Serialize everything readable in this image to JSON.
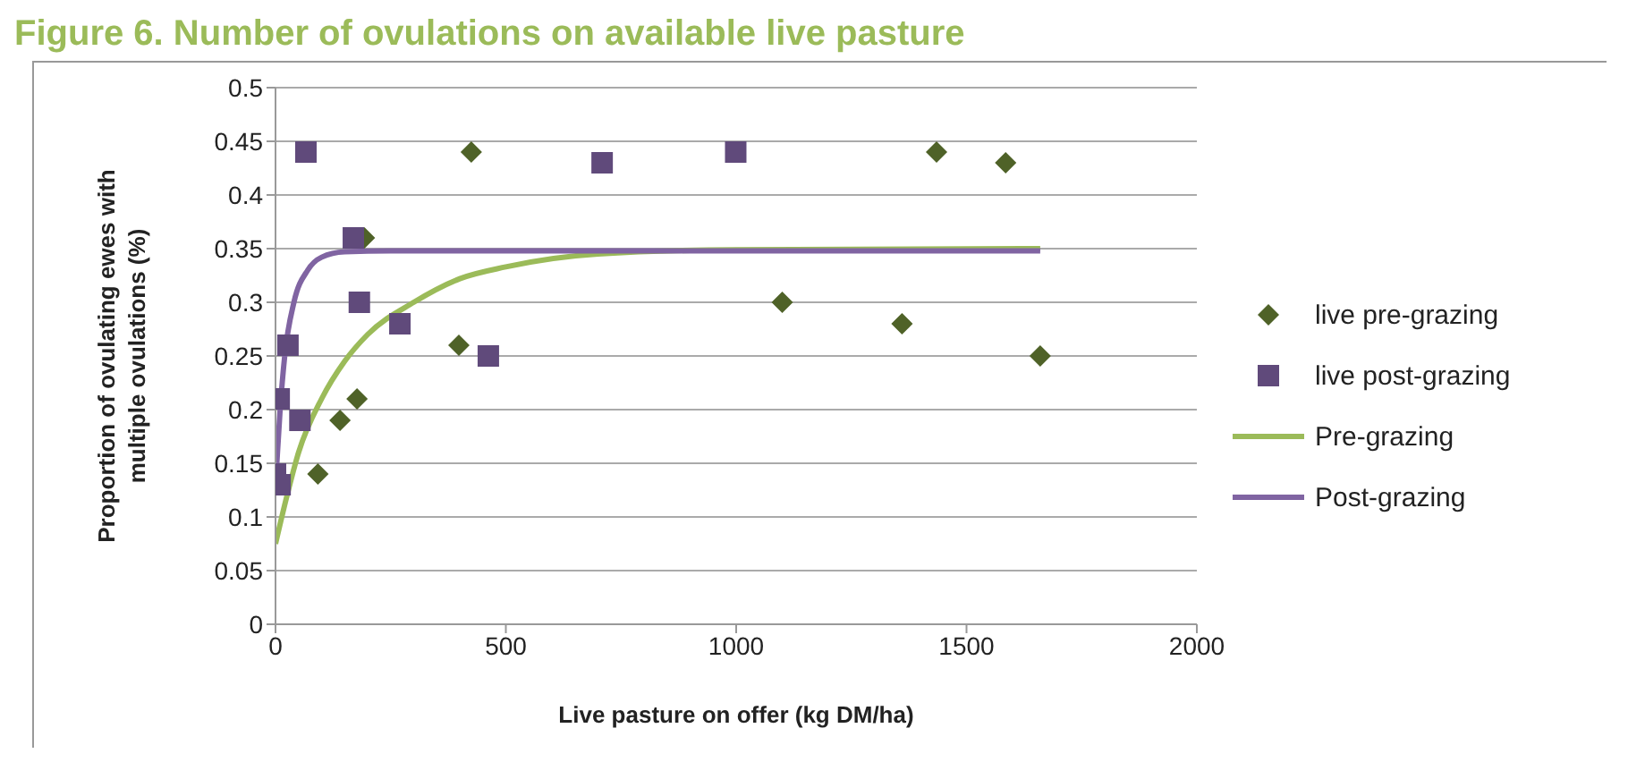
{
  "chart_data": {
    "type": "scatter",
    "title": "Figure 6. Number of ovulations on available live pasture",
    "xlabel": "Live pasture on offer (kg DM/ha)",
    "ylabel": "Proportion of ovulating ewes with multiple ovulations (%)",
    "xlim": [
      0,
      2000
    ],
    "xticks": [
      0,
      500,
      1000,
      1500,
      2000
    ],
    "ylim": [
      0,
      0.5
    ],
    "yticks": [
      0,
      0.05,
      0.1,
      0.15,
      0.2,
      0.25,
      0.3,
      0.35,
      0.4,
      0.45,
      0.5
    ],
    "grid": "y",
    "legend": "right",
    "series": [
      {
        "name": "live pre-grazing",
        "marker": "diamond",
        "color": "#4f6228",
        "x": [
          92,
          140,
          177,
          193,
          398,
          425,
          1100,
          1360,
          1435,
          1585,
          1660
        ],
        "values": [
          0.14,
          0.19,
          0.21,
          0.36,
          0.26,
          0.44,
          0.3,
          0.28,
          0.44,
          0.43,
          0.25
        ]
      },
      {
        "name": "live post-grazing",
        "marker": "square",
        "color": "#604a7b",
        "x": [
          0,
          10,
          8,
          27,
          53,
          66,
          169,
          182,
          270,
          462,
          709,
          999
        ],
        "values": [
          0.14,
          0.13,
          0.21,
          0.26,
          0.19,
          0.44,
          0.36,
          0.3,
          0.28,
          0.25,
          0.43,
          0.44
        ]
      },
      {
        "name": "Pre-grazing",
        "type": "line",
        "marker": "none",
        "line_style": "solid",
        "color": "#9bbb59",
        "x": [
          0,
          25,
          50,
          100,
          150,
          200,
          300,
          400,
          500,
          700,
          1000,
          1660
        ],
        "values": [
          0.075,
          0.12,
          0.16,
          0.21,
          0.245,
          0.27,
          0.3,
          0.322,
          0.333,
          0.345,
          0.349,
          0.35
        ]
      },
      {
        "name": "Post-grazing",
        "type": "line",
        "marker": "none",
        "line_style": "solid",
        "color": "#8064a2",
        "x": [
          0,
          10,
          20,
          40,
          70,
          100,
          150,
          250,
          1660
        ],
        "values": [
          0.13,
          0.2,
          0.25,
          0.3,
          0.33,
          0.342,
          0.347,
          0.348,
          0.348
        ]
      }
    ]
  }
}
